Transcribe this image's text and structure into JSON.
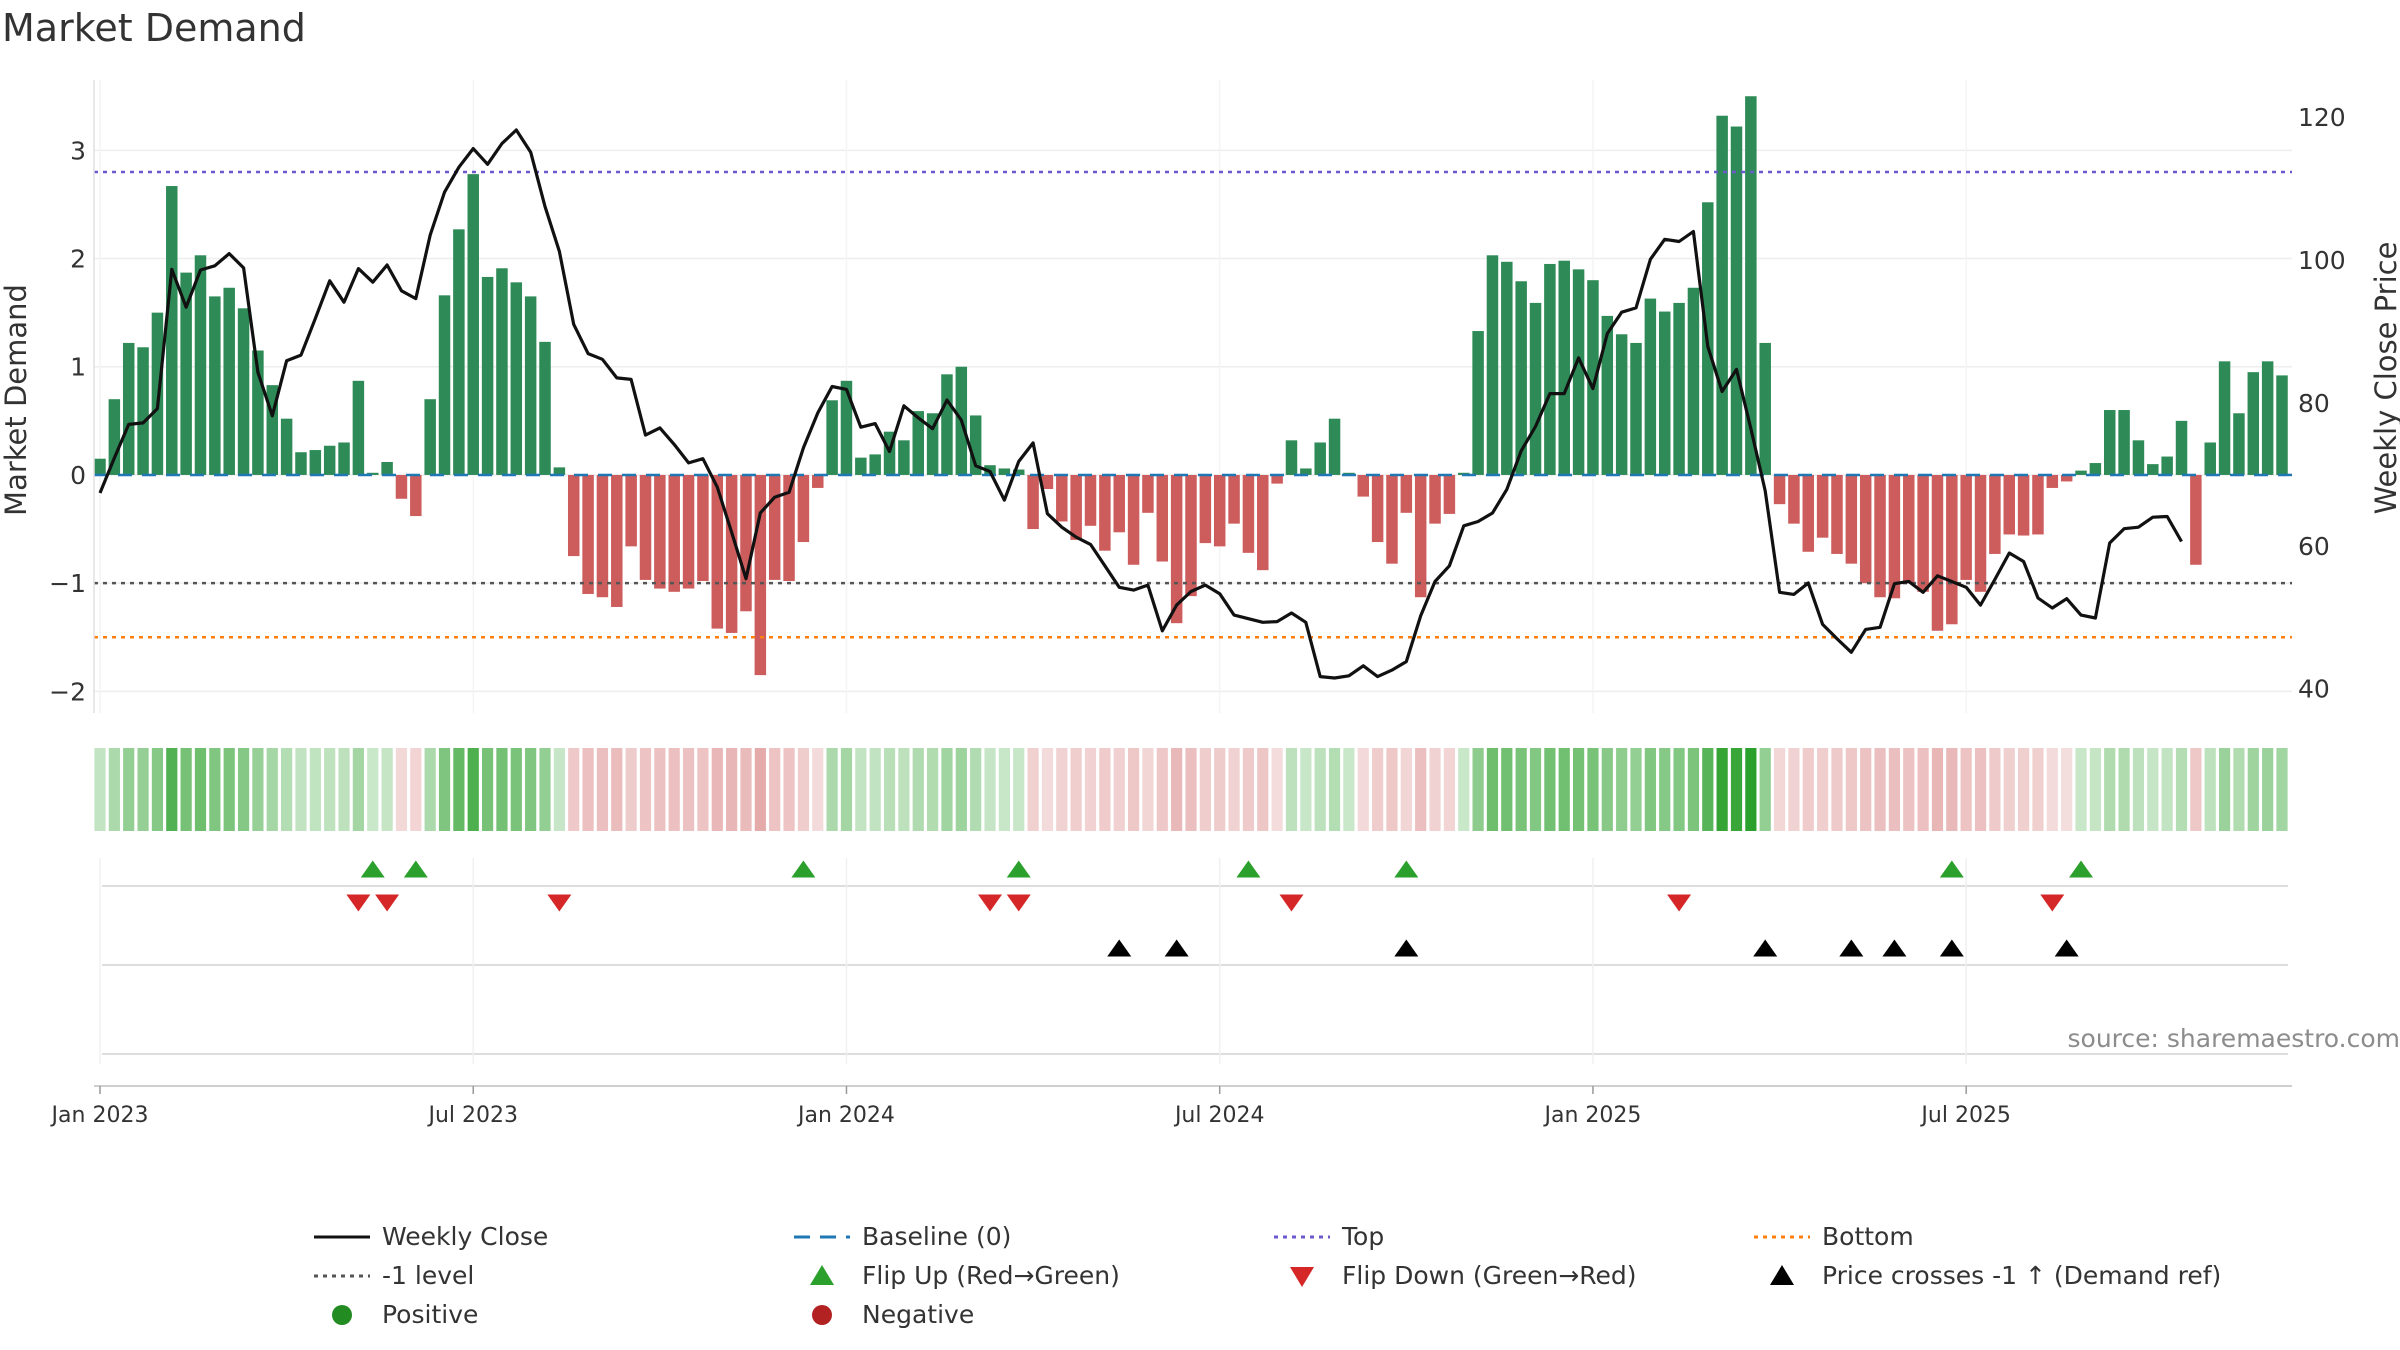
{
  "title": "Market Demand",
  "source": "source: sharemaestro.com",
  "colors": {
    "positive_bar": "#2e8b57",
    "negative_bar": "#cd5c5c",
    "close_line": "#111111",
    "baseline": "#1f77b4",
    "top": "#6a5acd",
    "minus_one": "#555555",
    "bottom": "#ff7f0e",
    "flip_up": "#2ca02c",
    "flip_down": "#d62728",
    "cross": "#000000",
    "grid": "#eeeeee"
  },
  "chart_data": {
    "type": "bar+line",
    "title": "Market Demand",
    "ylabel_left": "Market Demand",
    "ylabel_right": "Weekly Close Price",
    "ylim_left": [
      -2.2,
      3.65
    ],
    "ylim_right": [
      36.6,
      125.2
    ],
    "left_ticks": [
      3,
      2,
      1,
      0,
      -1,
      -2
    ],
    "left_tick_labels": [
      "3",
      "2",
      "1",
      "0",
      "−1",
      "−2"
    ],
    "right_ticks": [
      120,
      100,
      80,
      60,
      40
    ],
    "right_tick_labels": [
      "120",
      "100",
      "80",
      "60",
      "40"
    ],
    "x_tick_labels": [
      "Jan 2023",
      "Jul 2023",
      "Jan 2024",
      "Jul 2024",
      "Jan 2025",
      "Jul 2025"
    ],
    "x_tick_weeks": [
      0,
      26,
      52,
      78,
      104,
      130
    ],
    "reference_levels": {
      "top": 2.8,
      "minus_one": -1,
      "bottom": -1.5,
      "baseline": 0
    },
    "weeks_start": "2022-12-26",
    "demand": [
      0.15,
      0.7,
      1.22,
      1.18,
      1.5,
      2.67,
      1.87,
      2.03,
      1.65,
      1.73,
      1.54,
      1.15,
      0.83,
      0.52,
      0.21,
      0.23,
      0.27,
      0.3,
      0.87,
      0.02,
      0.12,
      -0.22,
      -0.38,
      0.7,
      1.66,
      2.27,
      2.78,
      1.83,
      1.91,
      1.78,
      1.65,
      1.23,
      0.07,
      -0.75,
      -1.1,
      -1.13,
      -1.22,
      -0.66,
      -0.97,
      -1.05,
      -1.08,
      -1.05,
      -0.98,
      -1.42,
      -1.46,
      -1.26,
      -1.85,
      -0.97,
      -0.98,
      -0.62,
      -0.12,
      0.69,
      0.87,
      0.16,
      0.19,
      0.4,
      0.32,
      0.59,
      0.57,
      0.93,
      1.0,
      0.55,
      0.09,
      0.06,
      0.05,
      -0.5,
      -0.13,
      -0.43,
      -0.6,
      -0.47,
      -0.7,
      -0.53,
      -0.83,
      -0.35,
      -0.8,
      -1.37,
      -1.12,
      -0.63,
      -0.66,
      -0.45,
      -0.72,
      -0.88,
      -0.08,
      0.32,
      0.06,
      0.3,
      0.52,
      0.02,
      -0.2,
      -0.62,
      -0.82,
      -0.35,
      -1.13,
      -0.45,
      -0.36,
      0.02,
      1.33,
      2.03,
      1.97,
      1.79,
      1.59,
      1.95,
      1.98,
      1.9,
      1.8,
      1.47,
      1.3,
      1.22,
      1.63,
      1.51,
      1.59,
      1.73,
      2.52,
      3.32,
      3.22,
      3.5,
      1.22,
      -0.27,
      -0.45,
      -0.71,
      -0.58,
      -0.73,
      -0.82,
      -1.0,
      -1.13,
      -1.14,
      -1.0,
      -1.08,
      -1.44,
      -1.38,
      -0.97,
      -1.08,
      -0.73,
      -0.55,
      -0.56,
      -0.55,
      -0.12,
      -0.06,
      0.04,
      0.11,
      0.6,
      0.6,
      0.32,
      0.1,
      0.17,
      0.5,
      -0.83,
      0.3,
      1.05,
      0.57,
      0.95,
      1.05,
      0.92
    ],
    "close": [
      67.4,
      72.3,
      77.0,
      77.2,
      79.2,
      98.7,
      93.4,
      98.6,
      99.2,
      100.9,
      98.9,
      84.3,
      78.2,
      85.9,
      86.7,
      91.8,
      97.1,
      94.1,
      98.8,
      96.9,
      99.3,
      95.7,
      94.6,
      103.5,
      109.5,
      113.0,
      115.6,
      113.4,
      116.3,
      118.2,
      115.1,
      107.5,
      101.2,
      91.0,
      86.9,
      86.1,
      83.5,
      83.3,
      75.5,
      76.5,
      74.2,
      71.6,
      72.2,
      68.2,
      61.9,
      55.4,
      64.6,
      66.8,
      67.5,
      73.7,
      78.6,
      82.3,
      81.9,
      76.6,
      77.1,
      73.2,
      79.6,
      77.9,
      76.4,
      80.4,
      77.6,
      71.2,
      70.4,
      66.4,
      71.8,
      74.4,
      64.5,
      62.6,
      61.2,
      60.2,
      57.2,
      54.2,
      53.8,
      54.5,
      48.1,
      51.7,
      53.6,
      54.5,
      53.3,
      50.3,
      49.8,
      49.3,
      49.4,
      50.6,
      49.3,
      41.7,
      41.5,
      41.8,
      43.2,
      41.7,
      42.6,
      43.8,
      50.2,
      55.0,
      57.2,
      62.8,
      63.4,
      64.6,
      67.9,
      73.3,
      76.7,
      81.3,
      81.3,
      86.3,
      82.0,
      89.7,
      92.7,
      93.3,
      100.1,
      102.9,
      102.6,
      104.0,
      87.9,
      81.6,
      84.7,
      76.4,
      67.7,
      53.5,
      53.2,
      54.8,
      49.0,
      47.0,
      45.1,
      48.3,
      48.6,
      54.7,
      55.0,
      53.5,
      55.8,
      55.0,
      54.2,
      51.7,
      55.3,
      59.0,
      57.8,
      52.7,
      51.3,
      52.6,
      50.3,
      49.9,
      60.4,
      62.4,
      62.6,
      64.0,
      64.1,
      60.6
    ],
    "demand_strip": {
      "type": "heatmap",
      "note": "colour intensity per week follows demand value (green positive, red negative)"
    },
    "events": {
      "flip_up_weeks": [
        19,
        22,
        49,
        64,
        80,
        91,
        129,
        138
      ],
      "flip_down_weeks": [
        18,
        20,
        32,
        62,
        64,
        83,
        110,
        136
      ],
      "price_cross_weeks": [
        71,
        75,
        91,
        116,
        122,
        125,
        129,
        137
      ]
    },
    "legend": {
      "weekly_close": "Weekly Close",
      "baseline": "Baseline (0)",
      "top": "Top",
      "bottom": "Bottom",
      "minus_one": "-1 level",
      "flip_up": "Flip Up (Red→Green)",
      "flip_down": "Flip Down (Green→Red)",
      "price_cross": "Price crosses -1 ↑ (Demand ref)",
      "positive": "Positive",
      "negative": "Negative"
    }
  }
}
